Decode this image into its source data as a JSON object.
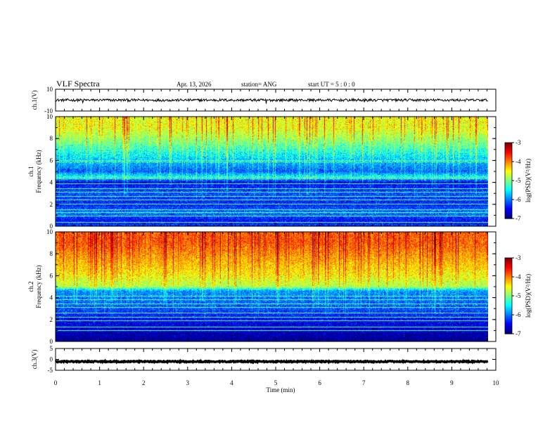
{
  "chart_data": {
    "type": "heatmap",
    "title": "VLF Spectra",
    "date": "Apr. 13, 2026",
    "station": "station= ANG",
    "start_ut": "start  UT =   5 : 0  : 0",
    "xlabel": "Time  (min)",
    "xlim": [
      0,
      10
    ],
    "xticks": [
      "0",
      "1",
      "2",
      "3",
      "4",
      "5",
      "6",
      "7",
      "8",
      "9",
      "10"
    ],
    "data_end_min": 9.82,
    "panels": [
      {
        "kind": "waveform",
        "id": "ch1-wave",
        "ylabel": "ch.1(V)",
        "ylim": [
          -10,
          10
        ],
        "yticks": [
          {
            "v": 10,
            "t": "10"
          },
          {
            "v": -10,
            "t": "-10"
          }
        ],
        "baseline_v": 0,
        "noise_amp_v": 1.2,
        "spikes": [
          {
            "t": 0.62,
            "v": -2.4
          },
          {
            "t": 4.78,
            "v": -3.2
          },
          {
            "t": 7.02,
            "v": -1.8
          }
        ]
      },
      {
        "kind": "spectrogram",
        "id": "ch1-spec",
        "ylabel": "ch.1\nFrequency  (kHz)",
        "ylim": [
          0,
          10
        ],
        "yticks": [
          "0",
          "2",
          "4",
          "6",
          "8",
          "10"
        ],
        "intensity_profile": [
          {
            "f": 0.0,
            "v": -6.3
          },
          {
            "f": 0.5,
            "v": -6.5
          },
          {
            "f": 1.2,
            "v": -6.0
          },
          {
            "f": 2.0,
            "v": -6.4
          },
          {
            "f": 3.0,
            "v": -6.2
          },
          {
            "f": 4.0,
            "v": -6.6
          },
          {
            "f": 4.5,
            "v": -5.5
          },
          {
            "f": 5.0,
            "v": -6.2
          },
          {
            "f": 6.0,
            "v": -5.8
          },
          {
            "f": 7.0,
            "v": -5.4
          },
          {
            "f": 8.0,
            "v": -5.0
          },
          {
            "f": 9.0,
            "v": -4.7
          },
          {
            "f": 10.0,
            "v": -4.7
          }
        ],
        "lines_khz": [
          0.3,
          0.9,
          1.2,
          1.5,
          2.0,
          2.4,
          2.7,
          3.1,
          3.4,
          3.9,
          4.3,
          4.45,
          5.9,
          6.0
        ],
        "spheric_density": 0.55,
        "colorbar": {
          "label": "log(PSD)(V²/Hz)",
          "min": -7,
          "max": -3,
          "ticks": [
            "-3",
            "-4",
            "-5",
            "-6",
            "-7"
          ]
        }
      },
      {
        "kind": "spectrogram",
        "id": "ch2-spec",
        "ylabel": "ch.2\nFrequency  (kHz)",
        "ylim": [
          0,
          10
        ],
        "yticks": [
          "0",
          "2",
          "4",
          "6",
          "8",
          "10"
        ],
        "intensity_profile": [
          {
            "f": 0.0,
            "v": -7.0
          },
          {
            "f": 0.5,
            "v": -6.9
          },
          {
            "f": 1.0,
            "v": -6.7
          },
          {
            "f": 2.0,
            "v": -6.5
          },
          {
            "f": 3.0,
            "v": -6.2
          },
          {
            "f": 4.0,
            "v": -6.1
          },
          {
            "f": 4.6,
            "v": -6.0
          },
          {
            "f": 5.0,
            "v": -4.9
          },
          {
            "f": 6.0,
            "v": -4.6
          },
          {
            "f": 7.0,
            "v": -4.4
          },
          {
            "f": 8.0,
            "v": -4.2
          },
          {
            "f": 9.0,
            "v": -4.0
          },
          {
            "f": 10.0,
            "v": -4.0
          }
        ],
        "lines_khz": [
          1.0,
          1.3,
          1.9,
          2.2,
          2.6,
          3.1,
          3.4,
          3.8,
          4.1
        ],
        "spheric_density": 0.6,
        "colorbar": {
          "label": "log(PSD)(V²/Hz)",
          "min": -7,
          "max": -3,
          "ticks": [
            "-3",
            "-4",
            "-5",
            "-6",
            "-7"
          ]
        }
      },
      {
        "kind": "waveform",
        "id": "ch3-wave",
        "ylabel": "ch.3(V)",
        "ylim": [
          -5,
          5
        ],
        "yticks": [
          {
            "v": 5,
            "t": "5"
          },
          {
            "v": 0,
            "t": "0"
          },
          {
            "v": -5,
            "t": "-5"
          }
        ],
        "baseline_v": -1.0,
        "noise_amp_v": 0.25,
        "spikes": []
      }
    ]
  }
}
